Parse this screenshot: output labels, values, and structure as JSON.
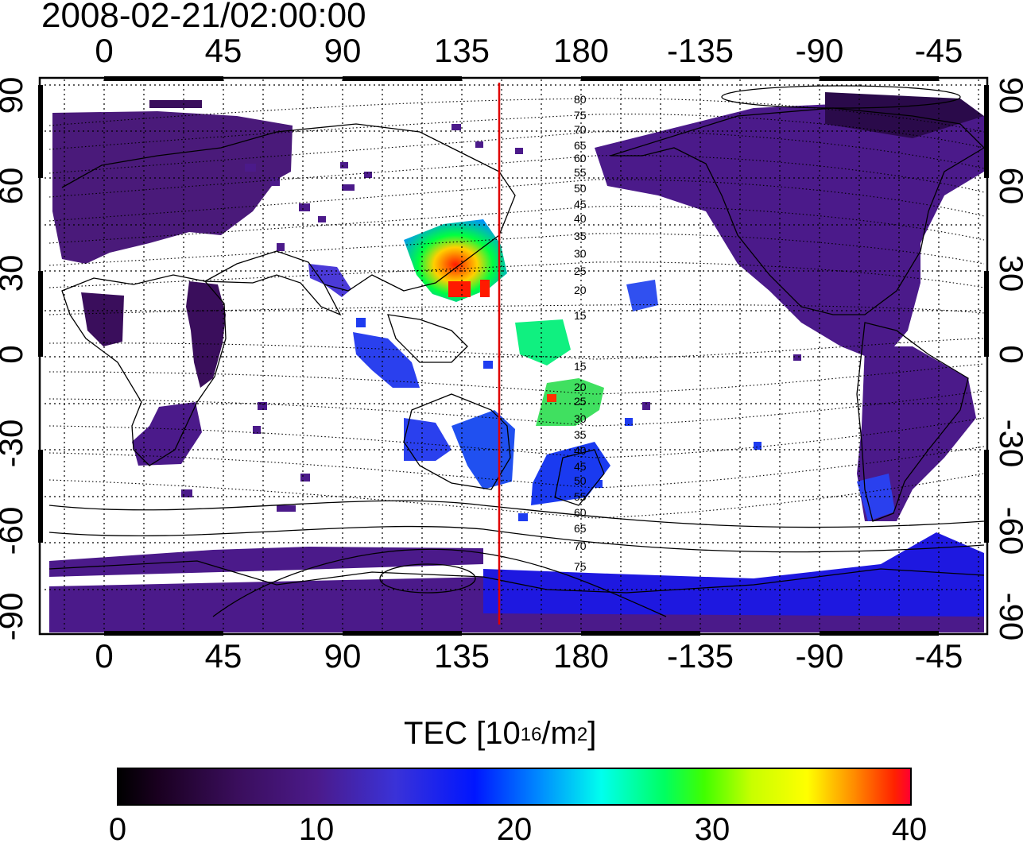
{
  "title": "2008-02-21/02:00:00",
  "x_ticks": [
    "0",
    "45",
    "90",
    "135",
    "180",
    "-135",
    "-90",
    "-45"
  ],
  "y_ticks": [
    "90",
    "60",
    "30",
    "0",
    "-30",
    "-60",
    "-90"
  ],
  "colorbar": {
    "label": "TEC  [10",
    "label_exp": "16",
    "label_unit": "/m",
    "label_unit_exp": "2",
    "label_close": "]",
    "ticks": [
      "0",
      "10",
      "20",
      "30",
      "40"
    ],
    "range": [
      0,
      40
    ],
    "colors": [
      "#000000",
      "#3a0e5c",
      "#4b1a8a",
      "#0016ff",
      "#00ffee",
      "#00ff60",
      "#ffff00",
      "#ff2200"
    ]
  },
  "map": {
    "longitude_axis": "-25 to 335 (labels wrap at 180)",
    "latitude_range": [
      -90,
      90
    ],
    "grid": "dotted, every 15 degrees",
    "marker_line_longitude": 150,
    "marker_line_color": "#e00000",
    "contour_labels_north": [
      "80",
      "75",
      "70",
      "65",
      "60",
      "55",
      "50",
      "45",
      "40",
      "35",
      "30",
      "25",
      "20",
      "15"
    ],
    "contour_labels_south": [
      "15",
      "20",
      "25",
      "30",
      "35",
      "40",
      "45",
      "50",
      "55",
      "60",
      "65",
      "70",
      "75"
    ]
  }
}
